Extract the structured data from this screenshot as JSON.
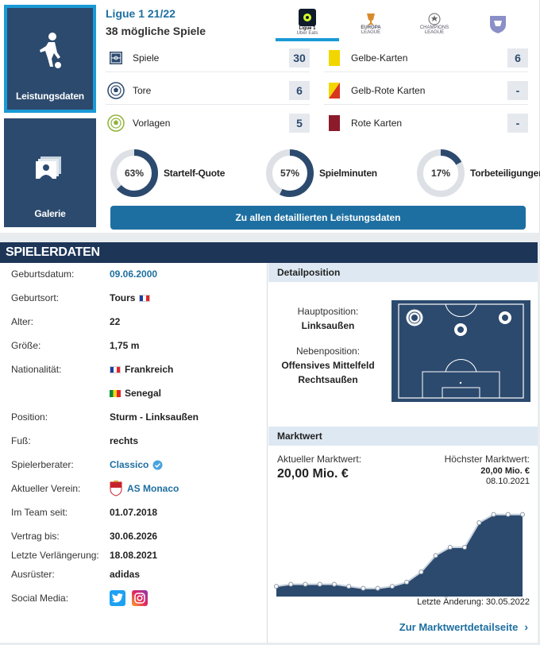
{
  "tabs": {
    "performance_label": "Leistungsdaten",
    "gallery_label": "Galerie"
  },
  "season": {
    "title": "Ligue 1 21/22",
    "games": "38 mögliche Spiele"
  },
  "competitions": [
    {
      "name": "Ligue 1",
      "sub": "Uber Eats",
      "active": true
    },
    {
      "name": "EUROPA",
      "sub": "LEAGUE"
    },
    {
      "name": "CHAMPIONS",
      "sub": "LEAGUE"
    },
    {
      "name": "FFF",
      "sub": ""
    }
  ],
  "stats_left": [
    {
      "label": "Spiele",
      "value": "30",
      "icon": "pitch-icon"
    },
    {
      "label": "Tore",
      "value": "6",
      "icon": "ball-icon"
    },
    {
      "label": "Vorlagen",
      "value": "5",
      "icon": "assist-icon"
    }
  ],
  "stats_right": [
    {
      "label": "Gelbe-Karten",
      "value": "6",
      "color": "#f2d600"
    },
    {
      "label": "Gelb-Rote Karten",
      "value": "-",
      "color": "#e8a300"
    },
    {
      "label": "Rote Karten",
      "value": "-",
      "color": "#8b1a2b"
    }
  ],
  "donuts": [
    {
      "pct": 63,
      "pct_text": "63%",
      "label": "Startelf-Quote"
    },
    {
      "pct": 57,
      "pct_text": "57%",
      "label": "Spielminuten"
    },
    {
      "pct": 17,
      "pct_text": "17%",
      "label": "Torbeteiligungen"
    }
  ],
  "all_perf_button": "Zu allen detaillierten Leistungsdaten",
  "player_data": {
    "header": "SPIELERDATEN",
    "rows": [
      {
        "k": "Geburtsdatum:",
        "v": "09.06.2000"
      },
      {
        "k": "Geburtsort:",
        "v": "Tours"
      },
      {
        "k": "Alter:",
        "v": "22"
      },
      {
        "k": "Größe:",
        "v": "1,75 m"
      },
      {
        "k": "Nationalität:",
        "v": "Frankreich"
      },
      {
        "k": "",
        "v": "Senegal"
      },
      {
        "k": "Position:",
        "v": "Sturm - Linksaußen"
      },
      {
        "k": "Fuß:",
        "v": "rechts"
      },
      {
        "k": "Spielerberater:",
        "v": "Classico"
      },
      {
        "k": "Aktueller Verein:",
        "v": "AS Monaco"
      },
      {
        "k": "Im Team seit:",
        "v": "01.07.2018"
      },
      {
        "k": "Vertrag bis:",
        "v": "30.06.2026"
      },
      {
        "k": "Letzte Verlängerung:",
        "v": "18.08.2021"
      },
      {
        "k": "Ausrüster:",
        "v": "adidas"
      },
      {
        "k": "Social Media:",
        "v": ""
      }
    ]
  },
  "detail_position": {
    "header": "Detailposition",
    "main_label": "Hauptposition:",
    "main_value": "Linksaußen",
    "secondary_label": "Nebenposition:",
    "secondary_values": [
      "Offensives Mittelfeld",
      "Rechtsaußen"
    ]
  },
  "market_value": {
    "header": "Marktwert",
    "current_label": "Aktueller Marktwert:",
    "current_value": "20,00 Mio. €",
    "highest_label": "Höchster Marktwert:",
    "highest_value": "20,00 Mio. €",
    "highest_date": "08.10.2021",
    "last_change": "Letzte Änderung: 30.05.2022",
    "link": "Zur Marktwertdetailseite",
    "chart_points": [
      2.5,
      3,
      3,
      3,
      3,
      2.5,
      2,
      2,
      2.5,
      3.5,
      6,
      10,
      12,
      12,
      18,
      20,
      20,
      20
    ]
  }
}
